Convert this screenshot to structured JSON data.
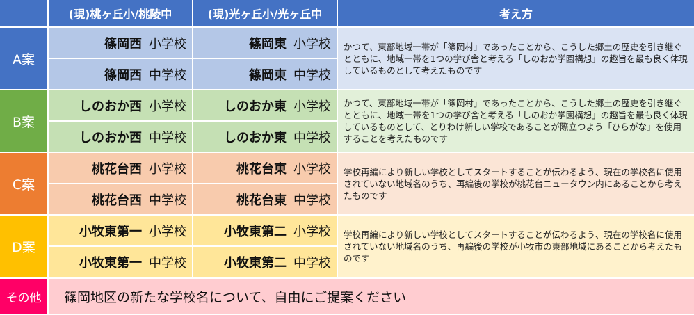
{
  "header": {
    "col1": "(現)桃ヶ丘小/桃陵中",
    "col2": "(現)光ヶ丘小/光ヶ丘中",
    "col3": "考え方"
  },
  "colors": {
    "header": "#4472c4",
    "A": [
      "#4472c4",
      "#b4c7e7",
      "#dae3f3"
    ],
    "B": [
      "#70ad47",
      "#c5e0b4",
      "#e2f0d9"
    ],
    "C": [
      "#ed7d31",
      "#f8cbad",
      "#fbe5d6"
    ],
    "D": [
      "#ffc000",
      "#ffe699",
      "#fff2cc"
    ],
    "other": [
      "#ff0066",
      "#ffccd0"
    ]
  },
  "plans": [
    {
      "label": "A案",
      "west": "篠岡西",
      "east": "篠岡東",
      "elem": "小学校",
      "junior": "中学校",
      "desc": "かつて、東部地域一帯が「篠岡村」であったことから、こうした郷土の歴史を引き継ぐとともに、地域一帯を1つの学び舎と考える「しのおか学園構想」の趣旨を最も良く体現しているものとして考えたものです"
    },
    {
      "label": "B案",
      "west": "しのおか西",
      "east": "しのおか東",
      "elem": "小学校",
      "junior": "中学校",
      "desc": "かつて、東部地域一帯が「篠岡村」であったことから、こうした郷土の歴史を引き継ぐとともに、地域一帯を1つの学び舎と考える「しのおか学園構想」の趣旨を最も良く体現しているものとして、とりわけ新しい学校であることが際立つよう「ひらがな」を使用することを考えたものです"
    },
    {
      "label": "C案",
      "west": "桃花台西",
      "east": "桃花台東",
      "elem": "小学校",
      "junior": "中学校",
      "desc": "学校再編により新しい学校としてスタートすることが伝わるよう、現在の学校名に使用されていない地域名のうち、再編後の学校が桃花台ニュータウン内にあることから考えたものです"
    },
    {
      "label": "D案",
      "west": "小牧東第一",
      "east": "小牧東第二",
      "elem": "小学校",
      "junior": "中学校",
      "desc": "学校再編により新しい学校としてスタートすることが伝わるよう、現在の学校名に使用されていない地域名のうち、再編後の学校が小牧市の東部地域にあることから考えたものです"
    }
  ],
  "other": {
    "label": "その他",
    "text": "篠岡地区の新たな学校名について、自由にご提案ください"
  }
}
